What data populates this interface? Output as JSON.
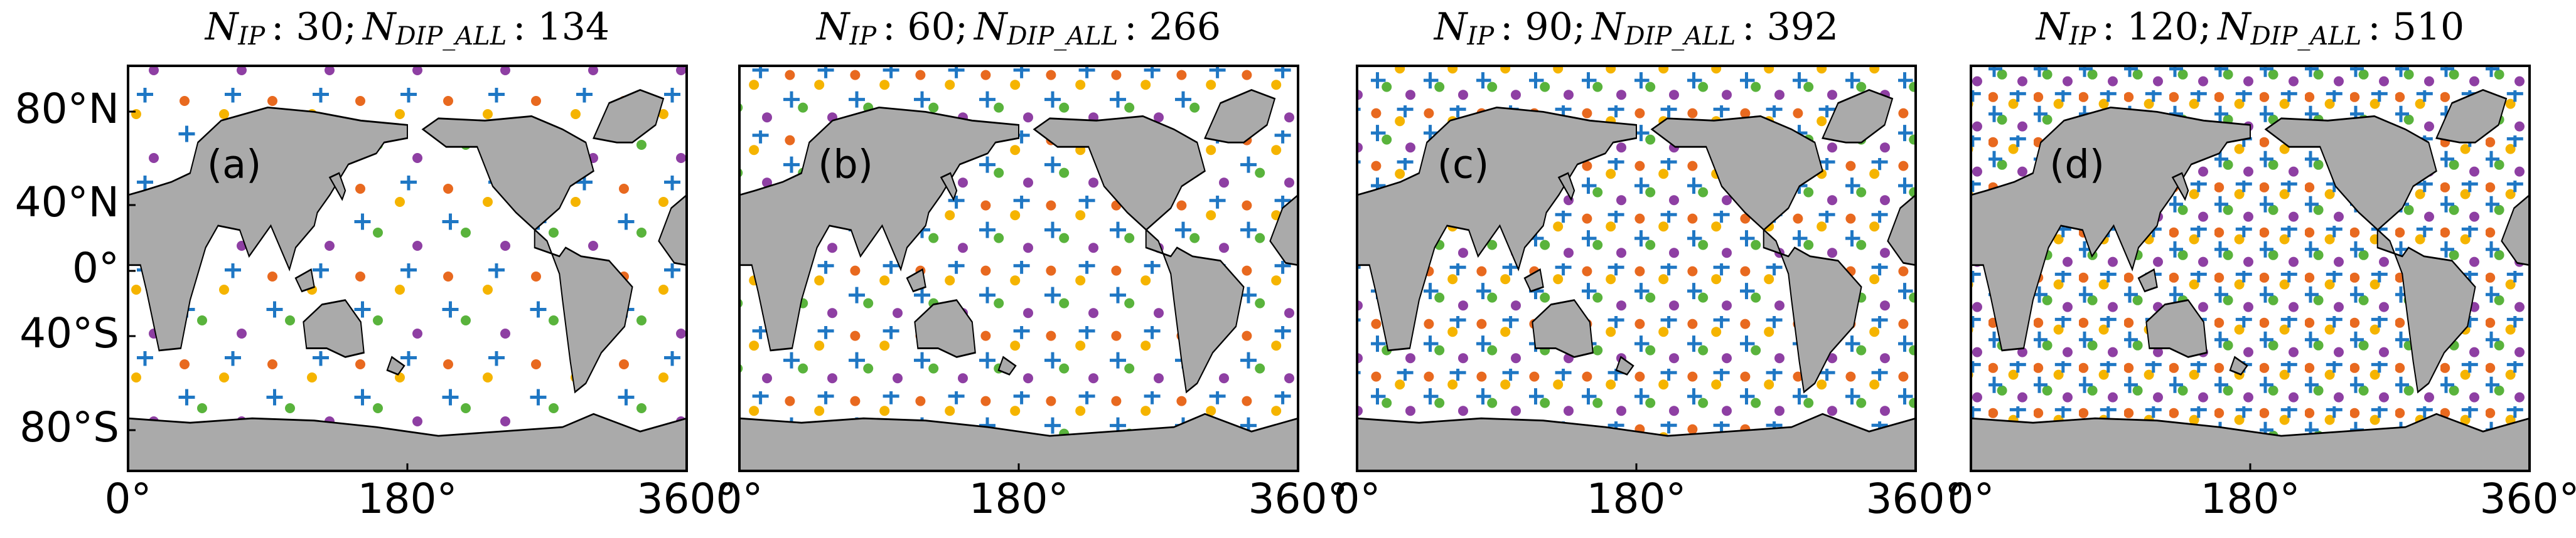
{
  "panels": [
    {
      "label": "(a)",
      "title": {
        "var1": "N",
        "sub1": "IP",
        "val1": ": 30;",
        "var2": "N",
        "sub2": "DIP_ALL",
        "val2": ": 134"
      }
    },
    {
      "label": "(b)",
      "title": {
        "var1": "N",
        "sub1": "IP",
        "val1": ": 60;",
        "var2": "N",
        "sub2": "DIP_ALL",
        "val2": ": 266"
      }
    },
    {
      "label": "(c)",
      "title": {
        "var1": "N",
        "sub1": "IP",
        "val1": ": 90;",
        "var2": "N",
        "sub2": "DIP_ALL",
        "val2": ": 392"
      }
    },
    {
      "label": "(d)",
      "title": {
        "var1": "N",
        "sub1": "IP",
        "val1": ": 120;",
        "var2": "N",
        "sub2": "DIP_ALL",
        "val2": ": 510"
      }
    }
  ],
  "yticks": [
    "80°N",
    "40°N",
    "0°",
    "40°S",
    "80°S"
  ],
  "xticks": [
    "0°",
    "180°",
    "360°"
  ]
}
